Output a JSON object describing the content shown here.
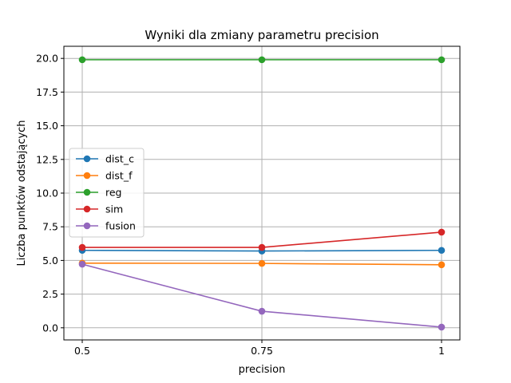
{
  "chart_data": {
    "type": "line",
    "title": "Wyniki dla zmiany parametru precision",
    "xlabel": "precision",
    "ylabel": "Liczba punktów odstających",
    "x": [
      0.5,
      0.75,
      1
    ],
    "x_tick_labels": [
      "0.5",
      "0.75",
      "1"
    ],
    "ylim": [
      -0.9,
      20.9
    ],
    "y_ticks": [
      0.0,
      2.5,
      5.0,
      7.5,
      10.0,
      12.5,
      15.0,
      17.5,
      20.0
    ],
    "y_tick_labels": [
      "0.0",
      "2.5",
      "5.0",
      "7.5",
      "10.0",
      "12.5",
      "15.0",
      "17.5",
      "20.0"
    ],
    "grid": true,
    "legend_position": "center-left",
    "series": [
      {
        "name": "dist_c",
        "color": "#1f77b4",
        "values": [
          5.75,
          5.7,
          5.75
        ]
      },
      {
        "name": "dist_f",
        "color": "#ff7f0e",
        "values": [
          4.8,
          4.78,
          4.68
        ]
      },
      {
        "name": "reg",
        "color": "#2ca02c",
        "values": [
          19.9,
          19.9,
          19.9
        ]
      },
      {
        "name": "sim",
        "color": "#d62728",
        "values": [
          5.97,
          5.97,
          7.1
        ]
      },
      {
        "name": "fusion",
        "color": "#9467bd",
        "values": [
          4.72,
          1.23,
          0.05
        ]
      }
    ]
  }
}
